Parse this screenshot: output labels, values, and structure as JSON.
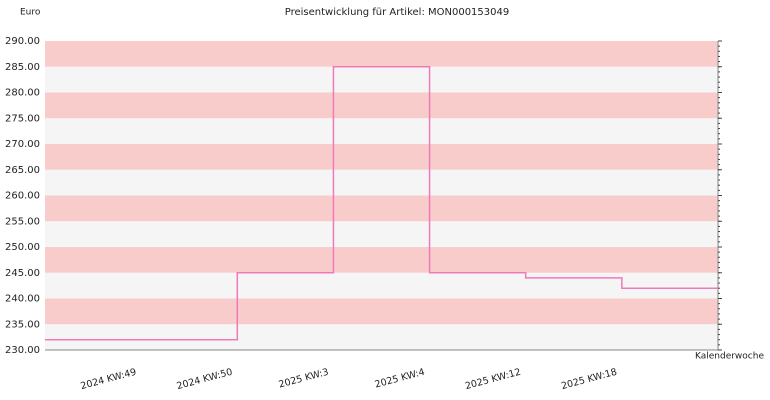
{
  "chart_data": {
    "type": "step",
    "title": "Preisentwicklung für Artikel: MON000153049",
    "y_label": "Euro",
    "x_label": "Kalenderwoche",
    "categories": [
      "2024 KW:49",
      "2024 KW:50",
      "2025 KW:3",
      "2025 KW:4",
      "2025 KW:12",
      "2025 KW:18"
    ],
    "values": [
      232,
      245,
      285,
      245,
      244,
      242
    ],
    "color": "#f07ab8",
    "band_colors": [
      "#f9cccc",
      "#f5f5f5"
    ],
    "ylim": [
      230,
      290
    ],
    "yticks": [
      {
        "value": 230,
        "label": "230.00"
      },
      {
        "value": 235,
        "label": "235.00"
      },
      {
        "value": 240,
        "label": "240.00"
      },
      {
        "value": 245,
        "label": "245.00"
      },
      {
        "value": 250,
        "label": "250.00"
      },
      {
        "value": 255,
        "label": "255.00"
      },
      {
        "value": 260,
        "label": "260.00"
      },
      {
        "value": 265,
        "label": "265.00"
      },
      {
        "value": 270,
        "label": "270.00"
      },
      {
        "value": 275,
        "label": "275.00"
      },
      {
        "value": 280,
        "label": "280.00"
      },
      {
        "value": 285,
        "label": "285.00"
      },
      {
        "value": 290,
        "label": "290.00"
      }
    ]
  }
}
